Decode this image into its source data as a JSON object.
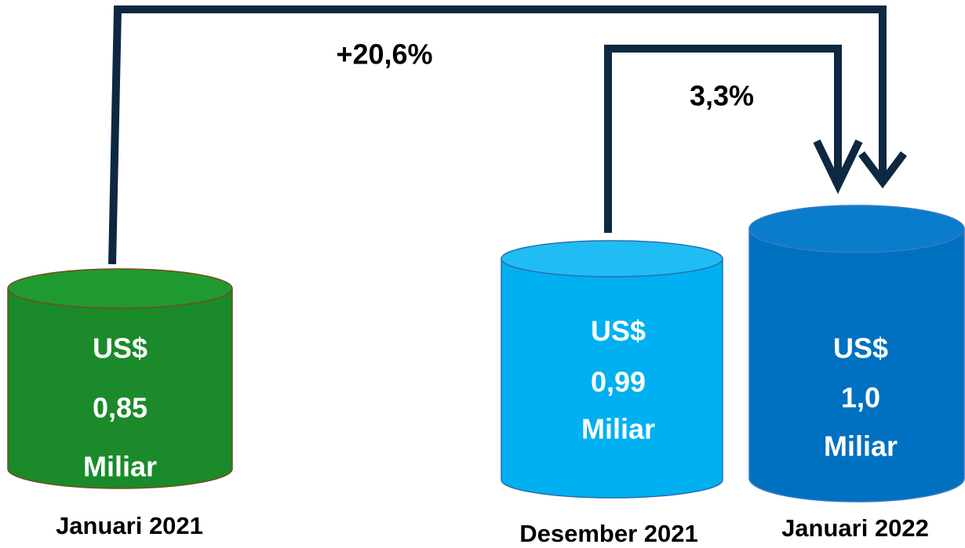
{
  "nodes": [
    {
      "lines": [
        "US$",
        "0,85",
        "Miliar"
      ],
      "caption": "Januari 2021"
    },
    {
      "lines": [
        "US$",
        "0,99",
        "Miliar"
      ],
      "caption": "Desember 2021"
    },
    {
      "lines": [
        "US$",
        "1,0",
        "Miliar"
      ],
      "caption": "Januari 2022"
    }
  ],
  "annotations": [
    "+20,6%",
    "3,3%"
  ]
}
